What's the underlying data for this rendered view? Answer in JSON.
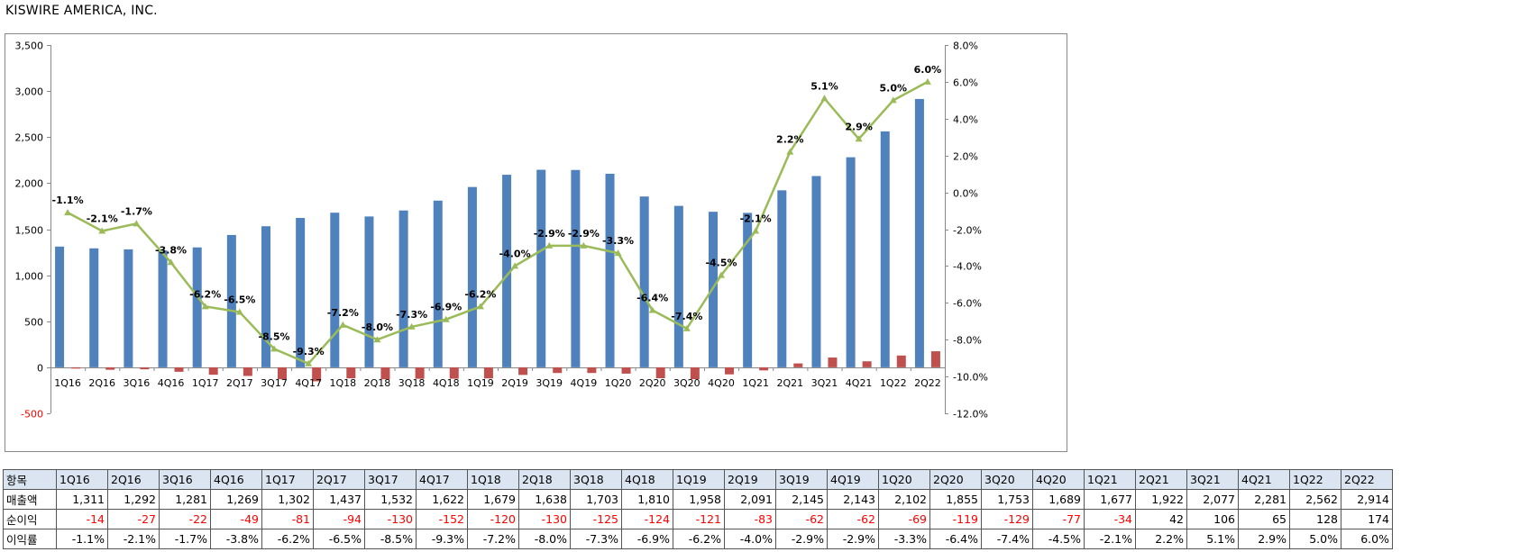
{
  "page": {
    "title": "KISWIRE AMERICA, INC."
  },
  "table": {
    "row_headers": [
      "항목",
      "매출액",
      "순이익",
      "이익률"
    ]
  },
  "chart_data": {
    "type": "bar",
    "categories": [
      "1Q16",
      "2Q16",
      "3Q16",
      "4Q16",
      "1Q17",
      "2Q17",
      "3Q17",
      "4Q17",
      "1Q18",
      "2Q18",
      "3Q18",
      "4Q18",
      "1Q19",
      "2Q19",
      "3Q19",
      "4Q19",
      "1Q20",
      "2Q20",
      "3Q20",
      "4Q20",
      "1Q21",
      "2Q21",
      "3Q21",
      "4Q21",
      "1Q22",
      "2Q22"
    ],
    "series": [
      {
        "name": "매출액",
        "kind": "bar",
        "axis": "left",
        "color": "#4f81bd",
        "values": [
          1311,
          1292,
          1281,
          1269,
          1302,
          1437,
          1532,
          1622,
          1679,
          1638,
          1703,
          1810,
          1958,
          2091,
          2145,
          2143,
          2102,
          1855,
          1753,
          1689,
          1677,
          1922,
          2077,
          2281,
          2562,
          2914
        ]
      },
      {
        "name": "순이익",
        "kind": "bar",
        "axis": "left",
        "color": "#c0504d",
        "values": [
          -14,
          -27,
          -22,
          -49,
          -81,
          -94,
          -130,
          -152,
          -120,
          -130,
          -125,
          -124,
          -121,
          -83,
          -62,
          -62,
          -69,
          -119,
          -129,
          -77,
          -34,
          42,
          106,
          65,
          128,
          174
        ]
      },
      {
        "name": "이익률",
        "kind": "line",
        "axis": "right",
        "color": "#9bbb59",
        "values": [
          -1.1,
          -2.1,
          -1.7,
          -3.8,
          -6.2,
          -6.5,
          -8.5,
          -9.3,
          -7.2,
          -8.0,
          -7.3,
          -6.9,
          -6.2,
          -4.0,
          -2.9,
          -2.9,
          -3.3,
          -6.4,
          -7.4,
          -4.5,
          -2.1,
          2.2,
          5.1,
          2.9,
          5.0,
          6.0
        ],
        "labels": [
          "-1.1%",
          "-2.1%",
          "-1.7%",
          "-3.8%",
          "-6.2%",
          "-6.5%",
          "-8.5%",
          "-9.3%",
          "-7.2%",
          "-8.0%",
          "-7.3%",
          "-6.9%",
          "-6.2%",
          "-4.0%",
          "-2.9%",
          "-2.9%",
          "-3.3%",
          "-6.4%",
          "-7.4%",
          "-4.5%",
          "-2.1%",
          "2.2%",
          "5.1%",
          "2.9%",
          "5.0%",
          "6.0%"
        ]
      }
    ],
    "left_axis": {
      "ylim": [
        -500,
        3500
      ],
      "ticks": [
        -500,
        0,
        500,
        1000,
        1500,
        2000,
        2500,
        3000,
        3500
      ],
      "tick_labels": [
        "-500",
        "0",
        "500",
        "1,000",
        "1,500",
        "2,000",
        "2,500",
        "3,000",
        "3,500"
      ]
    },
    "right_axis": {
      "ylim": [
        -12.0,
        8.0
      ],
      "ticks": [
        -12,
        -10,
        -8,
        -6,
        -4,
        -2,
        0,
        2,
        4,
        6,
        8
      ],
      "tick_labels": [
        "-12.0%",
        "-10.0%",
        "-8.0%",
        "-6.0%",
        "-4.0%",
        "-2.0%",
        "0.0%",
        "2.0%",
        "4.0%",
        "6.0%",
        "8.0%"
      ]
    },
    "grid": false,
    "legend": "none",
    "table_display": {
      "revenue": [
        "1,311",
        "1,292",
        "1,281",
        "1,269",
        "1,302",
        "1,437",
        "1,532",
        "1,622",
        "1,679",
        "1,638",
        "1,703",
        "1,810",
        "1,958",
        "2,091",
        "2,145",
        "2,143",
        "2,102",
        "1,855",
        "1,753",
        "1,689",
        "1,677",
        "1,922",
        "2,077",
        "2,281",
        "2,562",
        "2,914"
      ],
      "profit": [
        "-14",
        "-27",
        "-22",
        "-49",
        "-81",
        "-94",
        "-130",
        "-152",
        "-120",
        "-130",
        "-125",
        "-124",
        "-121",
        "-83",
        "-62",
        "-62",
        "-69",
        "-119",
        "-129",
        "-77",
        "-34",
        "42",
        "106",
        "65",
        "128",
        "174"
      ]
    }
  }
}
